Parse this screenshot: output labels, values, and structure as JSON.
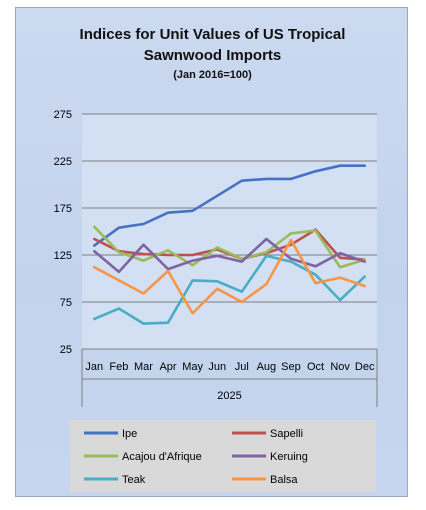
{
  "chart_data": {
    "type": "line",
    "title": [
      "Indices for Unit Values of US Tropical",
      "Sawnwood Imports"
    ],
    "subtitle": "(Jan 2016=100)",
    "xlabel": "2025",
    "ylabel": "",
    "categories": [
      "Jan",
      "Feb",
      "Mar",
      "Apr",
      "May",
      "Jun",
      "Jul",
      "Aug",
      "Sep",
      "Oct",
      "Nov",
      "Dec"
    ],
    "ylim": [
      25,
      275
    ],
    "yticks": [
      25,
      75,
      125,
      175,
      225,
      275
    ],
    "grid": true,
    "legend_position": "bottom",
    "series": [
      {
        "name": "Ipe",
        "color": "#4472c4",
        "values": [
          135,
          154,
          158,
          170,
          172,
          188,
          204,
          206,
          206,
          214,
          220,
          220
        ]
      },
      {
        "name": "Sapelli",
        "color": "#c0504d",
        "values": [
          142,
          129,
          126,
          125,
          125,
          131,
          121,
          127,
          136,
          152,
          122,
          120
        ]
      },
      {
        "name": "Acajou d'Afrique",
        "color": "#9bbb59",
        "values": [
          155,
          128,
          119,
          130,
          114,
          133,
          121,
          128,
          148,
          151,
          112,
          120
        ]
      },
      {
        "name": "Keruing",
        "color": "#8064a2",
        "values": [
          129,
          107,
          136,
          110,
          119,
          124,
          118,
          142,
          121,
          113,
          127,
          118
        ]
      },
      {
        "name": "Teak",
        "color": "#4bacc6",
        "values": [
          57,
          68,
          52,
          53,
          98,
          97,
          86,
          124,
          118,
          104,
          77,
          102
        ]
      },
      {
        "name": "Balsa",
        "color": "#f79646",
        "values": [
          112,
          98,
          84,
          108,
          63,
          89,
          75,
          94,
          141,
          95,
          101,
          92
        ]
      }
    ]
  }
}
